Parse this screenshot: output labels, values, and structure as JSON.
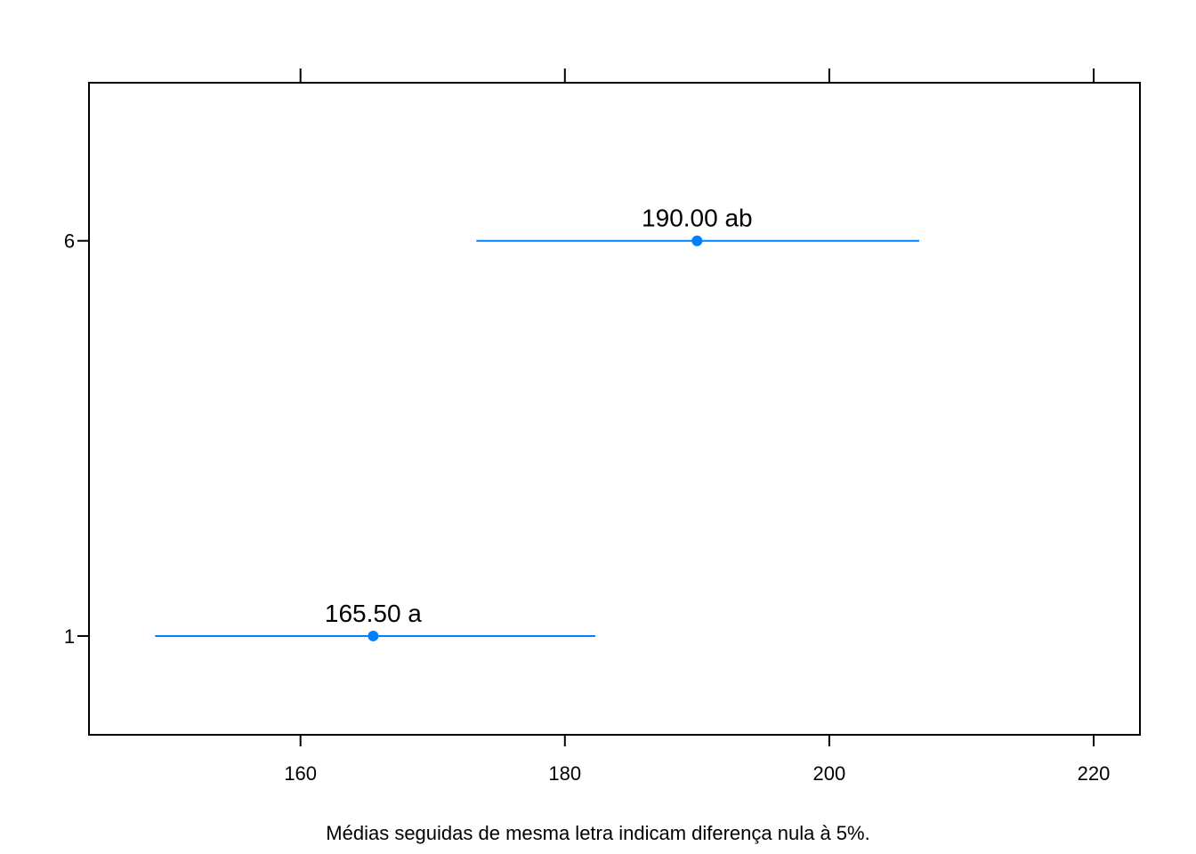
{
  "chart_data": {
    "type": "scatter",
    "orientation": "horizontal",
    "categories": [
      "1",
      "6"
    ],
    "points": [
      {
        "category": "1",
        "mean": 165.5,
        "lower": 149.0,
        "upper": 182.3,
        "label": "165.50 a"
      },
      {
        "category": "6",
        "mean": 190.0,
        "lower": 173.3,
        "upper": 206.8,
        "label": "190.00 ab"
      }
    ],
    "xlim": [
      144.0,
      223.5
    ],
    "x_ticks": [
      160,
      180,
      200,
      220
    ],
    "ylim": [
      0.0,
      6.6
    ],
    "y_positions": {
      "1": 1.0,
      "6": 5.0
    },
    "xlabel": "Médias seguidas de mesma letra indicam diferença nula à 5%.",
    "ylabel": "",
    "grid": false,
    "colors": {
      "series": "#0080ff",
      "axis": "#000000"
    }
  }
}
